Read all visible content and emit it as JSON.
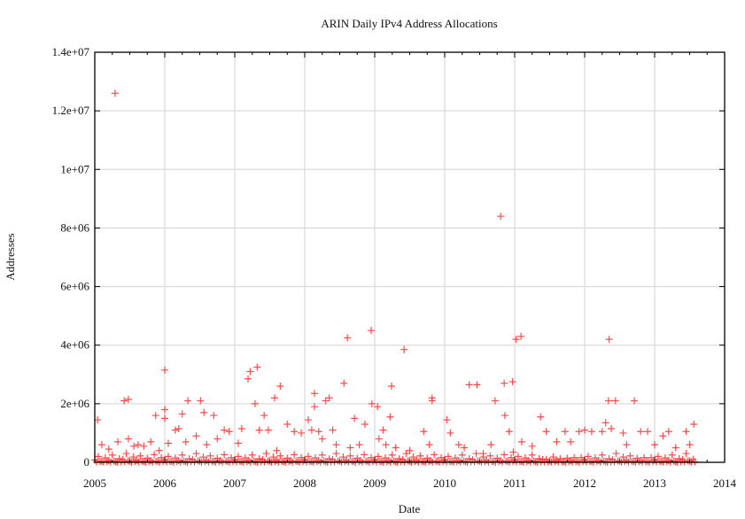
{
  "chart_data": {
    "type": "scatter",
    "title": "ARIN Daily IPv4 Address Allocations",
    "xlabel": "Date",
    "ylabel": "Addresses",
    "xlim": [
      2005,
      2014
    ],
    "ylim": [
      0,
      14000000
    ],
    "x_ticks": [
      "2005",
      "2006",
      "2007",
      "2008",
      "2009",
      "2010",
      "2011",
      "2012",
      "2013",
      "2014"
    ],
    "y_ticks": [
      {
        "value": 0,
        "label": "0"
      },
      {
        "value": 2000000,
        "label": "2e+06"
      },
      {
        "value": 4000000,
        "label": "4e+06"
      },
      {
        "value": 6000000,
        "label": "6e+06"
      },
      {
        "value": 8000000,
        "label": "8e+06"
      },
      {
        "value": 10000000,
        "label": "1e+07"
      },
      {
        "value": 12000000,
        "label": "1.2e+07"
      },
      {
        "value": 14000000,
        "label": "1.4e+07"
      }
    ],
    "grid": true,
    "marker": "+",
    "color": "#ff2a2a",
    "points": [
      [
        2005.29,
        12600000
      ],
      [
        2005.04,
        1450000
      ],
      [
        2005.42,
        2100000
      ],
      [
        2005.48,
        2150000
      ],
      [
        2005.48,
        800000
      ],
      [
        2005.87,
        1600000
      ],
      [
        2006.0,
        1500000
      ],
      [
        2006.25,
        1650000
      ],
      [
        2006.33,
        2100000
      ],
      [
        2006.51,
        2100000
      ],
      [
        2006.56,
        1700000
      ],
      [
        2006.7,
        1600000
      ],
      [
        2006.0,
        3150000
      ],
      [
        2006.0,
        1800000
      ],
      [
        2007.19,
        2850000
      ],
      [
        2007.22,
        3100000
      ],
      [
        2007.32,
        3250000
      ],
      [
        2007.29,
        2000000
      ],
      [
        2007.42,
        1600000
      ],
      [
        2007.57,
        2200000
      ],
      [
        2007.65,
        2600000
      ],
      [
        2008.14,
        2350000
      ],
      [
        2008.14,
        1900000
      ],
      [
        2008.3,
        2100000
      ],
      [
        2008.35,
        2200000
      ],
      [
        2008.56,
        2700000
      ],
      [
        2008.61,
        4250000
      ],
      [
        2008.71,
        1500000
      ],
      [
        2008.86,
        1300000
      ],
      [
        2008.95,
        4500000
      ],
      [
        2008.96,
        2000000
      ],
      [
        2009.04,
        1900000
      ],
      [
        2009.22,
        1550000
      ],
      [
        2009.24,
        2600000
      ],
      [
        2009.42,
        3850000
      ],
      [
        2009.82,
        2200000
      ],
      [
        2009.82,
        2100000
      ],
      [
        2010.03,
        1450000
      ],
      [
        2010.35,
        2650000
      ],
      [
        2010.46,
        2650000
      ],
      [
        2010.72,
        2100000
      ],
      [
        2010.8,
        8400000
      ],
      [
        2010.85,
        2700000
      ],
      [
        2010.97,
        2750000
      ],
      [
        2011.02,
        4200000
      ],
      [
        2011.09,
        4300000
      ],
      [
        2010.86,
        1600000
      ],
      [
        2011.37,
        1550000
      ],
      [
        2012.35,
        4200000
      ],
      [
        2012.34,
        2100000
      ],
      [
        2012.44,
        2100000
      ],
      [
        2012.71,
        2100000
      ],
      [
        2012.3,
        1350000
      ],
      [
        2012.0,
        1100000
      ],
      [
        2013.56,
        1300000
      ],
      [
        2005.1,
        600000
      ],
      [
        2005.2,
        450000
      ],
      [
        2005.33,
        700000
      ],
      [
        2005.56,
        550000
      ],
      [
        2005.62,
        600000
      ],
      [
        2005.7,
        550000
      ],
      [
        2005.8,
        700000
      ],
      [
        2005.92,
        400000
      ],
      [
        2006.05,
        650000
      ],
      [
        2006.15,
        1100000
      ],
      [
        2006.2,
        1150000
      ],
      [
        2006.3,
        700000
      ],
      [
        2006.45,
        900000
      ],
      [
        2006.6,
        600000
      ],
      [
        2006.75,
        800000
      ],
      [
        2006.85,
        1100000
      ],
      [
        2006.92,
        1050000
      ],
      [
        2007.05,
        650000
      ],
      [
        2007.1,
        1150000
      ],
      [
        2007.35,
        1100000
      ],
      [
        2007.48,
        1100000
      ],
      [
        2007.6,
        400000
      ],
      [
        2007.75,
        1300000
      ],
      [
        2007.85,
        1050000
      ],
      [
        2007.95,
        1000000
      ],
      [
        2008.05,
        1450000
      ],
      [
        2008.1,
        1100000
      ],
      [
        2008.2,
        1050000
      ],
      [
        2008.25,
        800000
      ],
      [
        2008.4,
        1100000
      ],
      [
        2008.45,
        600000
      ],
      [
        2008.65,
        500000
      ],
      [
        2008.78,
        600000
      ],
      [
        2009.06,
        800000
      ],
      [
        2009.12,
        1100000
      ],
      [
        2009.16,
        600000
      ],
      [
        2009.3,
        500000
      ],
      [
        2009.5,
        400000
      ],
      [
        2009.7,
        1050000
      ],
      [
        2009.78,
        600000
      ],
      [
        2010.08,
        1000000
      ],
      [
        2010.2,
        600000
      ],
      [
        2010.28,
        500000
      ],
      [
        2010.55,
        300000
      ],
      [
        2010.66,
        600000
      ],
      [
        2010.92,
        1050000
      ],
      [
        2010.98,
        350000
      ],
      [
        2011.1,
        700000
      ],
      [
        2011.25,
        550000
      ],
      [
        2011.45,
        1050000
      ],
      [
        2011.6,
        700000
      ],
      [
        2011.72,
        1050000
      ],
      [
        2011.8,
        700000
      ],
      [
        2011.92,
        1050000
      ],
      [
        2012.1,
        1050000
      ],
      [
        2012.25,
        1050000
      ],
      [
        2012.38,
        1150000
      ],
      [
        2012.55,
        1000000
      ],
      [
        2012.6,
        600000
      ],
      [
        2012.8,
        1050000
      ],
      [
        2012.9,
        1050000
      ],
      [
        2013.0,
        600000
      ],
      [
        2013.12,
        900000
      ],
      [
        2013.2,
        1050000
      ],
      [
        2013.3,
        500000
      ],
      [
        2013.45,
        1050000
      ],
      [
        2013.5,
        600000
      ]
    ],
    "dense_points": [
      [
        2005.0,
        80000
      ],
      [
        2005.05,
        200000
      ],
      [
        2005.1,
        30000
      ],
      [
        2005.15,
        150000
      ],
      [
        2005.2,
        60000
      ],
      [
        2005.25,
        250000
      ],
      [
        2005.3,
        20000
      ],
      [
        2005.35,
        120000
      ],
      [
        2005.4,
        90000
      ],
      [
        2005.45,
        300000
      ],
      [
        2005.5,
        40000
      ],
      [
        2005.55,
        180000
      ],
      [
        2005.6,
        70000
      ],
      [
        2005.65,
        220000
      ],
      [
        2005.7,
        25000
      ],
      [
        2005.75,
        140000
      ],
      [
        2005.8,
        60000
      ],
      [
        2005.85,
        260000
      ],
      [
        2005.9,
        35000
      ],
      [
        2005.95,
        160000
      ],
      [
        2006.0,
        80000
      ],
      [
        2006.05,
        200000
      ],
      [
        2006.1,
        30000
      ],
      [
        2006.15,
        150000
      ],
      [
        2006.2,
        60000
      ],
      [
        2006.25,
        250000
      ],
      [
        2006.3,
        20000
      ],
      [
        2006.35,
        120000
      ],
      [
        2006.4,
        90000
      ],
      [
        2006.45,
        300000
      ],
      [
        2006.5,
        40000
      ],
      [
        2006.55,
        180000
      ],
      [
        2006.6,
        70000
      ],
      [
        2006.65,
        220000
      ],
      [
        2006.7,
        25000
      ],
      [
        2006.75,
        140000
      ],
      [
        2006.8,
        60000
      ],
      [
        2006.85,
        260000
      ],
      [
        2006.9,
        35000
      ],
      [
        2006.95,
        160000
      ],
      [
        2007.0,
        80000
      ],
      [
        2007.05,
        200000
      ],
      [
        2007.1,
        30000
      ],
      [
        2007.15,
        150000
      ],
      [
        2007.2,
        60000
      ],
      [
        2007.25,
        250000
      ],
      [
        2007.3,
        20000
      ],
      [
        2007.35,
        120000
      ],
      [
        2007.4,
        90000
      ],
      [
        2007.45,
        300000
      ],
      [
        2007.5,
        40000
      ],
      [
        2007.55,
        180000
      ],
      [
        2007.6,
        70000
      ],
      [
        2007.65,
        220000
      ],
      [
        2007.7,
        25000
      ],
      [
        2007.75,
        140000
      ],
      [
        2007.8,
        60000
      ],
      [
        2007.85,
        260000
      ],
      [
        2007.9,
        35000
      ],
      [
        2007.95,
        160000
      ],
      [
        2008.0,
        80000
      ],
      [
        2008.05,
        200000
      ],
      [
        2008.1,
        30000
      ],
      [
        2008.15,
        150000
      ],
      [
        2008.2,
        60000
      ],
      [
        2008.25,
        250000
      ],
      [
        2008.3,
        20000
      ],
      [
        2008.35,
        120000
      ],
      [
        2008.4,
        90000
      ],
      [
        2008.45,
        300000
      ],
      [
        2008.5,
        40000
      ],
      [
        2008.55,
        180000
      ],
      [
        2008.6,
        70000
      ],
      [
        2008.65,
        220000
      ],
      [
        2008.7,
        25000
      ],
      [
        2008.75,
        140000
      ],
      [
        2008.8,
        60000
      ],
      [
        2008.85,
        260000
      ],
      [
        2008.9,
        35000
      ],
      [
        2008.95,
        160000
      ],
      [
        2009.0,
        80000
      ],
      [
        2009.05,
        200000
      ],
      [
        2009.1,
        30000
      ],
      [
        2009.15,
        150000
      ],
      [
        2009.2,
        60000
      ],
      [
        2009.25,
        250000
      ],
      [
        2009.3,
        20000
      ],
      [
        2009.35,
        120000
      ],
      [
        2009.4,
        90000
      ],
      [
        2009.45,
        300000
      ],
      [
        2009.5,
        40000
      ],
      [
        2009.55,
        180000
      ],
      [
        2009.6,
        70000
      ],
      [
        2009.65,
        220000
      ],
      [
        2009.7,
        25000
      ],
      [
        2009.75,
        140000
      ],
      [
        2009.8,
        60000
      ],
      [
        2009.85,
        260000
      ],
      [
        2009.9,
        35000
      ],
      [
        2009.95,
        160000
      ],
      [
        2010.0,
        80000
      ],
      [
        2010.05,
        200000
      ],
      [
        2010.1,
        30000
      ],
      [
        2010.15,
        150000
      ],
      [
        2010.2,
        60000
      ],
      [
        2010.25,
        250000
      ],
      [
        2010.3,
        20000
      ],
      [
        2010.35,
        120000
      ],
      [
        2010.4,
        90000
      ],
      [
        2010.45,
        300000
      ],
      [
        2010.5,
        40000
      ],
      [
        2010.55,
        180000
      ],
      [
        2010.6,
        70000
      ],
      [
        2010.65,
        220000
      ],
      [
        2010.7,
        25000
      ],
      [
        2010.75,
        140000
      ],
      [
        2010.8,
        60000
      ],
      [
        2010.85,
        260000
      ],
      [
        2010.9,
        35000
      ],
      [
        2010.95,
        160000
      ],
      [
        2011.0,
        80000
      ],
      [
        2011.05,
        200000
      ],
      [
        2011.1,
        30000
      ],
      [
        2011.15,
        150000
      ],
      [
        2011.2,
        60000
      ],
      [
        2011.25,
        250000
      ],
      [
        2011.3,
        20000
      ],
      [
        2011.35,
        120000
      ],
      [
        2011.4,
        90000
      ],
      [
        2011.45,
        100000
      ],
      [
        2011.5,
        40000
      ],
      [
        2011.55,
        180000
      ],
      [
        2011.6,
        70000
      ],
      [
        2011.65,
        120000
      ],
      [
        2011.7,
        25000
      ],
      [
        2011.75,
        140000
      ],
      [
        2011.8,
        60000
      ],
      [
        2011.85,
        160000
      ],
      [
        2011.9,
        35000
      ],
      [
        2011.95,
        160000
      ],
      [
        2012.0,
        80000
      ],
      [
        2012.05,
        200000
      ],
      [
        2012.1,
        30000
      ],
      [
        2012.15,
        150000
      ],
      [
        2012.2,
        60000
      ],
      [
        2012.25,
        250000
      ],
      [
        2012.3,
        20000
      ],
      [
        2012.35,
        120000
      ],
      [
        2012.4,
        90000
      ],
      [
        2012.45,
        300000
      ],
      [
        2012.5,
        40000
      ],
      [
        2012.55,
        180000
      ],
      [
        2012.6,
        70000
      ],
      [
        2012.65,
        220000
      ],
      [
        2012.7,
        25000
      ],
      [
        2012.75,
        140000
      ],
      [
        2012.8,
        60000
      ],
      [
        2012.85,
        160000
      ],
      [
        2012.9,
        35000
      ],
      [
        2012.95,
        160000
      ],
      [
        2013.0,
        80000
      ],
      [
        2013.05,
        200000
      ],
      [
        2013.1,
        30000
      ],
      [
        2013.15,
        150000
      ],
      [
        2013.2,
        60000
      ],
      [
        2013.25,
        250000
      ],
      [
        2013.3,
        20000
      ],
      [
        2013.35,
        120000
      ],
      [
        2013.4,
        90000
      ],
      [
        2013.45,
        300000
      ],
      [
        2013.5,
        40000
      ],
      [
        2013.55,
        100000
      ]
    ]
  }
}
